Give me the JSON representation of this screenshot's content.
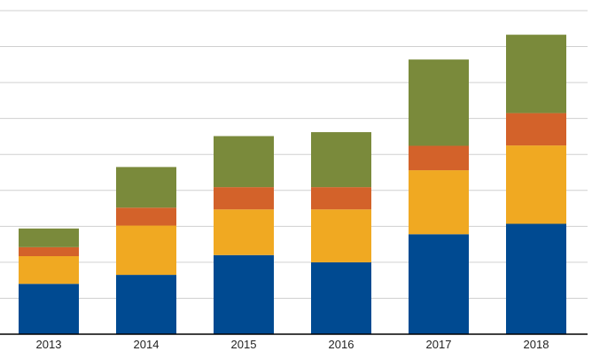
{
  "chart_data": {
    "type": "bar",
    "stacked": true,
    "title": "",
    "xlabel": "",
    "ylabel": "",
    "categories": [
      "2013",
      "2014",
      "2015",
      "2016",
      "2017",
      "2018"
    ],
    "ylim": [
      0,
      9
    ],
    "grid": true,
    "legend": "none",
    "series": [
      {
        "color": "#004A91",
        "values": [
          1.4,
          1.65,
          2.2,
          2.0,
          2.78,
          3.07
        ]
      },
      {
        "color": "#F0A922",
        "values": [
          0.77,
          1.37,
          1.27,
          1.47,
          1.78,
          2.18
        ]
      },
      {
        "color": "#D3622A",
        "values": [
          0.25,
          0.5,
          0.62,
          0.62,
          0.68,
          0.9
        ]
      },
      {
        "color": "#7A8A3B",
        "values": [
          0.52,
          1.13,
          1.42,
          1.53,
          2.4,
          2.18
        ]
      }
    ]
  }
}
